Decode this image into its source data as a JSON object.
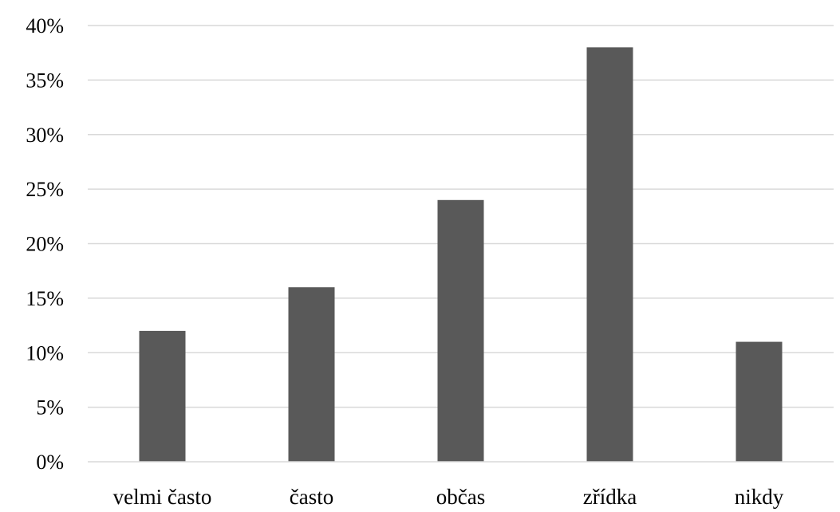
{
  "chart_data": {
    "type": "bar",
    "title": "",
    "xlabel": "",
    "ylabel": "",
    "categories": [
      "velmi často",
      "často",
      "občas",
      "zřídka",
      "nikdy"
    ],
    "values": [
      12,
      16,
      24,
      38,
      11
    ],
    "unit": "%",
    "ylim": [
      0,
      40
    ],
    "ytick_step": 5,
    "ytick_labels": [
      "0%",
      "5%",
      "10%",
      "15%",
      "20%",
      "25%",
      "30%",
      "35%",
      "40%"
    ],
    "grid": true,
    "legend": "none",
    "bar_color": "#595959"
  }
}
